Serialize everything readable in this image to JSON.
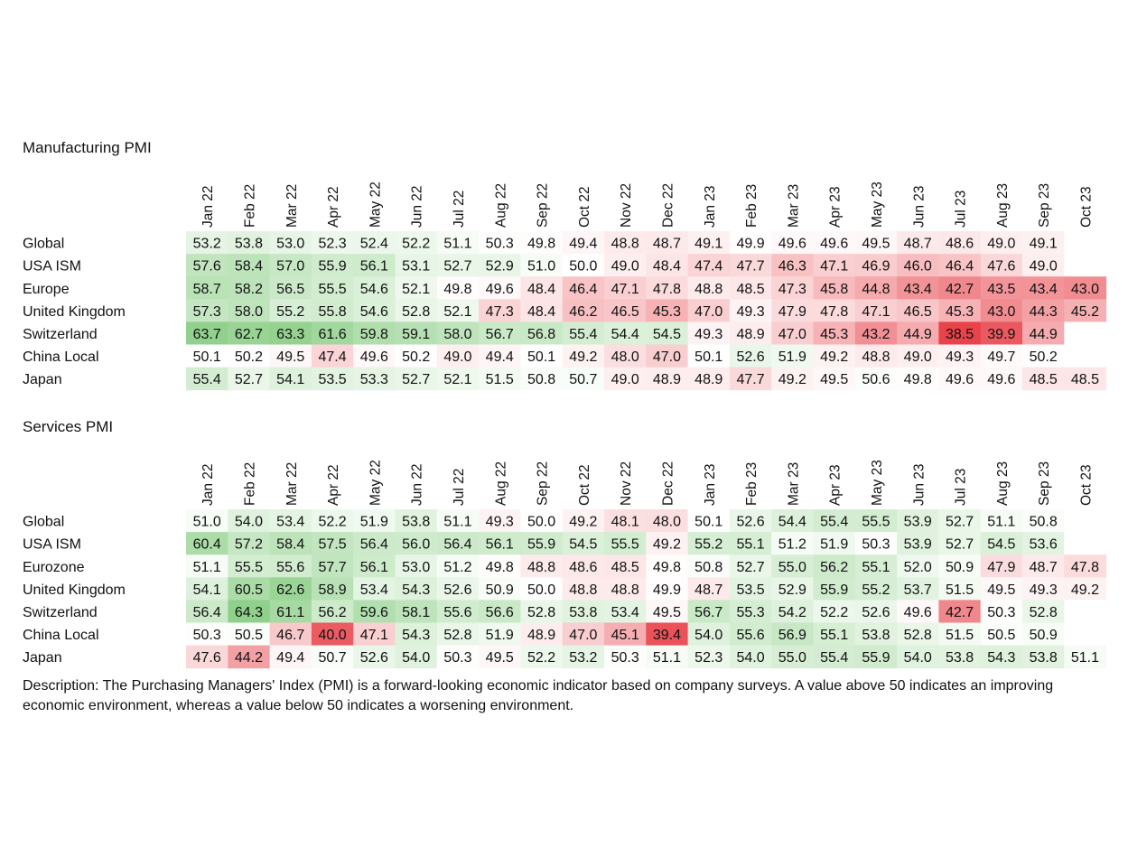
{
  "description": "Description: The Purchasing Managers' Index (PMI) is a forward-looking economic indicator based on company surveys. A value above 50 indicates an improving economic environment, whereas a value below 50 indicates a worsening environment.",
  "chart_data": [
    {
      "type": "heatmap",
      "title": "Manufacturing PMI",
      "columns": [
        "Jan 22",
        "Feb 22",
        "Mar 22",
        "Apr 22",
        "May 22",
        "Jun 22",
        "Jul 22",
        "Aug 22",
        "Sep 22",
        "Oct 22",
        "Nov 22",
        "Dec 22",
        "Jan 23",
        "Feb 23",
        "Mar 23",
        "Apr 23",
        "May 23",
        "Jun 23",
        "Jul 23",
        "Aug 23",
        "Sep 23",
        "Oct 23"
      ],
      "rows": [
        "Global",
        "USA ISM",
        "Europe",
        "United Kingdom",
        "Switzerland",
        "China Local",
        "Japan"
      ],
      "values": [
        [
          53.2,
          53.8,
          53.0,
          52.3,
          52.4,
          52.2,
          51.1,
          50.3,
          49.8,
          49.4,
          48.8,
          48.7,
          49.1,
          49.9,
          49.6,
          49.6,
          49.5,
          48.7,
          48.6,
          49.0,
          49.1,
          null
        ],
        [
          57.6,
          58.4,
          57.0,
          55.9,
          56.1,
          53.1,
          52.7,
          52.9,
          51.0,
          50.0,
          49.0,
          48.4,
          47.4,
          47.7,
          46.3,
          47.1,
          46.9,
          46.0,
          46.4,
          47.6,
          49.0,
          null
        ],
        [
          58.7,
          58.2,
          56.5,
          55.5,
          54.6,
          52.1,
          49.8,
          49.6,
          48.4,
          46.4,
          47.1,
          47.8,
          48.8,
          48.5,
          47.3,
          45.8,
          44.8,
          43.4,
          42.7,
          43.5,
          43.4,
          43.0
        ],
        [
          57.3,
          58.0,
          55.2,
          55.8,
          54.6,
          52.8,
          52.1,
          47.3,
          48.4,
          46.2,
          46.5,
          45.3,
          47.0,
          49.3,
          47.9,
          47.8,
          47.1,
          46.5,
          45.3,
          43.0,
          44.3,
          45.2
        ],
        [
          63.7,
          62.7,
          63.3,
          61.6,
          59.8,
          59.1,
          58.0,
          56.7,
          56.8,
          55.4,
          54.4,
          54.5,
          49.3,
          48.9,
          47.0,
          45.3,
          43.2,
          44.9,
          38.5,
          39.9,
          44.9,
          null
        ],
        [
          50.1,
          50.2,
          49.5,
          47.4,
          49.6,
          50.2,
          49.0,
          49.4,
          50.1,
          49.2,
          48.0,
          47.0,
          50.1,
          52.6,
          51.9,
          49.2,
          48.8,
          49.0,
          49.3,
          49.7,
          50.2,
          null
        ],
        [
          55.4,
          52.7,
          54.1,
          53.5,
          53.3,
          52.7,
          52.1,
          51.5,
          50.8,
          50.7,
          49.0,
          48.9,
          48.9,
          47.7,
          49.2,
          49.5,
          50.6,
          49.8,
          49.6,
          49.6,
          48.5,
          48.5
        ]
      ],
      "color_scale": {
        "center": 50,
        "positive": "#8fd08a",
        "negative": "#e8424a"
      }
    },
    {
      "type": "heatmap",
      "title": "Services PMI",
      "columns": [
        "Jan 22",
        "Feb 22",
        "Mar 22",
        "Apr 22",
        "May 22",
        "Jun 22",
        "Jul 22",
        "Aug 22",
        "Sep 22",
        "Oct 22",
        "Nov 22",
        "Dec 22",
        "Jan 23",
        "Feb 23",
        "Mar 23",
        "Apr 23",
        "May 23",
        "Jun 23",
        "Jul 23",
        "Aug 23",
        "Sep 23",
        "Oct 23"
      ],
      "rows": [
        "Global",
        "USA ISM",
        "Eurozone",
        "United Kingdom",
        "Switzerland",
        "China Local",
        "Japan"
      ],
      "values": [
        [
          51.0,
          54.0,
          53.4,
          52.2,
          51.9,
          53.8,
          51.1,
          49.3,
          50.0,
          49.2,
          48.1,
          48.0,
          50.1,
          52.6,
          54.4,
          55.4,
          55.5,
          53.9,
          52.7,
          51.1,
          50.8,
          null
        ],
        [
          60.4,
          57.2,
          58.4,
          57.5,
          56.4,
          56.0,
          56.4,
          56.1,
          55.9,
          54.5,
          55.5,
          49.2,
          55.2,
          55.1,
          51.2,
          51.9,
          50.3,
          53.9,
          52.7,
          54.5,
          53.6,
          null
        ],
        [
          51.1,
          55.5,
          55.6,
          57.7,
          56.1,
          53.0,
          51.2,
          49.8,
          48.8,
          48.6,
          48.5,
          49.8,
          50.8,
          52.7,
          55.0,
          56.2,
          55.1,
          52.0,
          50.9,
          47.9,
          48.7,
          47.8
        ],
        [
          54.1,
          60.5,
          62.6,
          58.9,
          53.4,
          54.3,
          52.6,
          50.9,
          50.0,
          48.8,
          48.8,
          49.9,
          48.7,
          53.5,
          52.9,
          55.9,
          55.2,
          53.7,
          51.5,
          49.5,
          49.3,
          49.2
        ],
        [
          56.4,
          64.3,
          61.1,
          56.2,
          59.6,
          58.1,
          55.6,
          56.6,
          52.8,
          53.8,
          53.4,
          49.5,
          56.7,
          55.3,
          54.2,
          52.2,
          52.6,
          49.6,
          42.7,
          50.3,
          52.8,
          null
        ],
        [
          50.3,
          50.5,
          46.7,
          40.0,
          47.1,
          54.3,
          52.8,
          51.9,
          48.9,
          47.0,
          45.1,
          39.4,
          54.0,
          55.6,
          56.9,
          55.1,
          53.8,
          52.8,
          51.5,
          50.5,
          50.9,
          null
        ],
        [
          47.6,
          44.2,
          49.4,
          50.7,
          52.6,
          54.0,
          50.3,
          49.5,
          52.2,
          53.2,
          50.3,
          51.1,
          52.3,
          54.0,
          55.0,
          55.4,
          55.9,
          54.0,
          53.8,
          54.3,
          53.8,
          51.1
        ]
      ],
      "color_scale": {
        "center": 50,
        "positive": "#8fd08a",
        "negative": "#e8424a"
      }
    }
  ]
}
